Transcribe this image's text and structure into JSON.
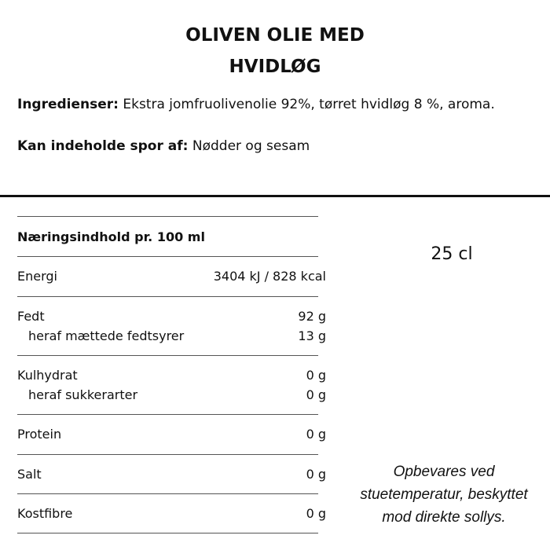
{
  "title": {
    "line1": "OLIVEN OLIE MED",
    "line2": "HVIDLØG"
  },
  "ingredients": {
    "label": "Ingredienser:",
    "text": " Ekstra jomfruolivenolie 92%, tørret hvidløg 8 %, aroma."
  },
  "allergens": {
    "label": "Kan indeholde spor af:",
    "text": " Nødder og sesam"
  },
  "nutrition": {
    "header": "Næringsindhold pr. 100 ml",
    "rows": [
      {
        "label": "Energi",
        "value": "3404 kJ / 828 kcal"
      },
      {
        "label": "Fedt",
        "value": "92 g"
      },
      {
        "label": "heraf mættede fedtsyrer",
        "value": "13 g"
      },
      {
        "label": "Kulhydrat",
        "value": "0 g"
      },
      {
        "label": "heraf sukkerarter",
        "value": "0 g"
      },
      {
        "label": "Protein",
        "value": "0 g"
      },
      {
        "label": "Salt",
        "value": "0 g"
      },
      {
        "label": "Kostfibre",
        "value": "0 g"
      }
    ]
  },
  "volume": "25 cl",
  "storage": {
    "line1": "Opbevares ved",
    "line2": "stuetemperatur, beskyttet",
    "line3": "mod direkte sollys."
  }
}
